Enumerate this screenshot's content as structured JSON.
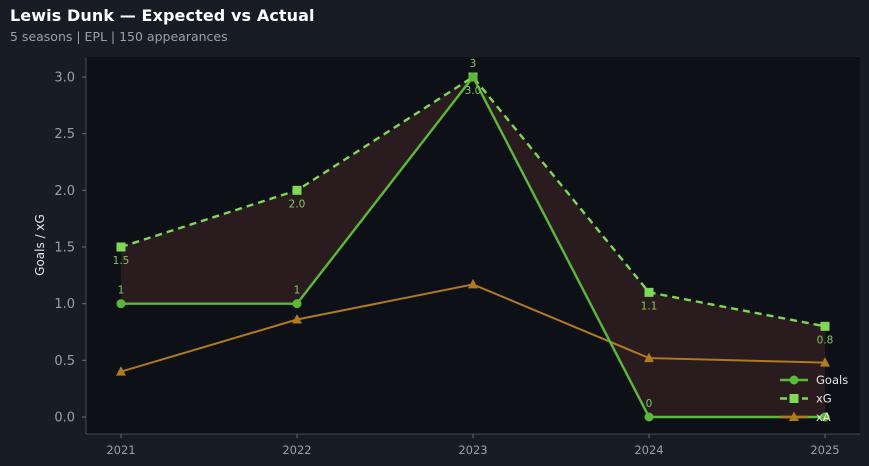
{
  "header": {
    "title": "Lewis Dunk — Expected vs Actual",
    "subtitle": "5 seasons | EPL | 150 appearances"
  },
  "chart_data": {
    "type": "line",
    "x": [
      "2021",
      "2022",
      "2023",
      "2024",
      "2025"
    ],
    "ylabel": "Goals / xG",
    "xlabel": "",
    "ylim": [
      -0.15,
      3.15
    ],
    "yticks": [
      "0.0",
      "0.5",
      "1.0",
      "1.5",
      "2.0",
      "2.5",
      "3.0"
    ],
    "series": [
      {
        "name": "Goals",
        "values": [
          1,
          1,
          3,
          0,
          0
        ],
        "labels": [
          "1",
          "1",
          "3",
          "0",
          ""
        ],
        "color": "#5cb83a",
        "style": "solid",
        "marker": "circle"
      },
      {
        "name": "xG",
        "values": [
          1.5,
          2.0,
          3.0,
          1.1,
          0.8
        ],
        "labels": [
          "1.5",
          "2.0",
          "3.0",
          "1.1",
          "0.8"
        ],
        "color": "#7ed957",
        "style": "dashed",
        "marker": "square"
      },
      {
        "name": "xA",
        "values": [
          0.4,
          0.86,
          1.17,
          0.52,
          0.48
        ],
        "color": "#b07a20",
        "style": "solid",
        "marker": "triangle"
      }
    ],
    "shaded_between": [
      "Goals",
      "xG"
    ],
    "shade_color": "#2a1b1e",
    "background": "#0d1016",
    "legend": "bottom-right",
    "grid": false
  }
}
